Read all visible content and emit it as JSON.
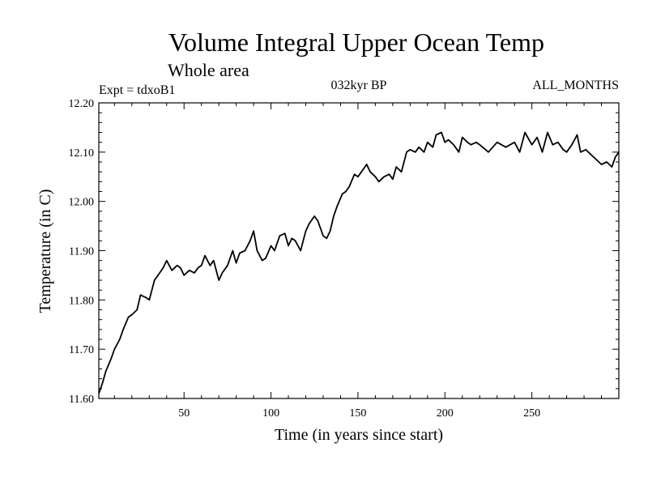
{
  "chart_data": {
    "type": "line",
    "title": "Volume Integral Upper Ocean Temp",
    "subtitle": "Whole area",
    "experiment": "Expt = tdxoB1",
    "period": "032kyr BP",
    "months": "ALL_MONTHS",
    "xlabel": "Time (in years since start)",
    "ylabel": "Temperature (in C)",
    "xlim": [
      1,
      300
    ],
    "ylim": [
      11.6,
      12.2
    ],
    "xticks": [
      50,
      100,
      150,
      200,
      250
    ],
    "xtick_labels": [
      "50",
      "100",
      "150",
      "200",
      "250"
    ],
    "yticks": [
      11.6,
      11.7,
      11.8,
      11.9,
      12.0,
      12.1,
      12.2
    ],
    "ytick_labels": [
      "11.60",
      "11.70",
      "11.80",
      "11.90",
      "12.00",
      "12.10",
      "12.20"
    ],
    "grid": false,
    "series": [
      {
        "name": "Temperature",
        "x": [
          1,
          3,
          5,
          8,
          10,
          13,
          15,
          18,
          20,
          23,
          25,
          28,
          30,
          33,
          36,
          38,
          40,
          43,
          46,
          48,
          50,
          53,
          56,
          58,
          60,
          62,
          65,
          67,
          70,
          72,
          75,
          78,
          80,
          82,
          85,
          88,
          90,
          92,
          95,
          97,
          100,
          102,
          105,
          108,
          110,
          112,
          114,
          117,
          120,
          122,
          125,
          127,
          130,
          132,
          134,
          136,
          138,
          141,
          143,
          145,
          148,
          150,
          152,
          155,
          157,
          160,
          162,
          165,
          168,
          170,
          172,
          175,
          178,
          180,
          183,
          185,
          188,
          190,
          193,
          195,
          198,
          200,
          202,
          205,
          208,
          210,
          213,
          215,
          218,
          220,
          225,
          230,
          235,
          240,
          243,
          246,
          250,
          253,
          256,
          259,
          262,
          265,
          268,
          270,
          273,
          276,
          278,
          281,
          284,
          287,
          290,
          293,
          296,
          298,
          300
        ],
        "values": [
          11.61,
          11.63,
          11.655,
          11.68,
          11.7,
          11.72,
          11.74,
          11.765,
          11.77,
          11.78,
          11.81,
          11.805,
          11.8,
          11.84,
          11.855,
          11.865,
          11.88,
          11.86,
          11.87,
          11.865,
          11.85,
          11.86,
          11.855,
          11.865,
          11.87,
          11.89,
          11.87,
          11.88,
          11.84,
          11.855,
          11.87,
          11.9,
          11.875,
          11.895,
          11.9,
          11.92,
          11.94,
          11.9,
          11.88,
          11.885,
          11.91,
          11.9,
          11.93,
          11.935,
          11.91,
          11.925,
          11.92,
          11.9,
          11.94,
          11.955,
          11.97,
          11.96,
          11.93,
          11.925,
          11.94,
          11.97,
          11.99,
          12.015,
          12.02,
          12.03,
          12.055,
          12.05,
          12.06,
          12.075,
          12.06,
          12.05,
          12.04,
          12.05,
          12.055,
          12.045,
          12.07,
          12.06,
          12.1,
          12.105,
          12.1,
          12.11,
          12.1,
          12.12,
          12.11,
          12.135,
          12.14,
          12.12,
          12.125,
          12.115,
          12.1,
          12.13,
          12.12,
          12.115,
          12.12,
          12.115,
          12.1,
          12.12,
          12.11,
          12.12,
          12.1,
          12.14,
          12.115,
          12.13,
          12.1,
          12.14,
          12.115,
          12.12,
          12.105,
          12.1,
          12.115,
          12.135,
          12.1,
          12.105,
          12.095,
          12.085,
          12.075,
          12.08,
          12.07,
          12.09,
          12.1
        ]
      }
    ]
  }
}
